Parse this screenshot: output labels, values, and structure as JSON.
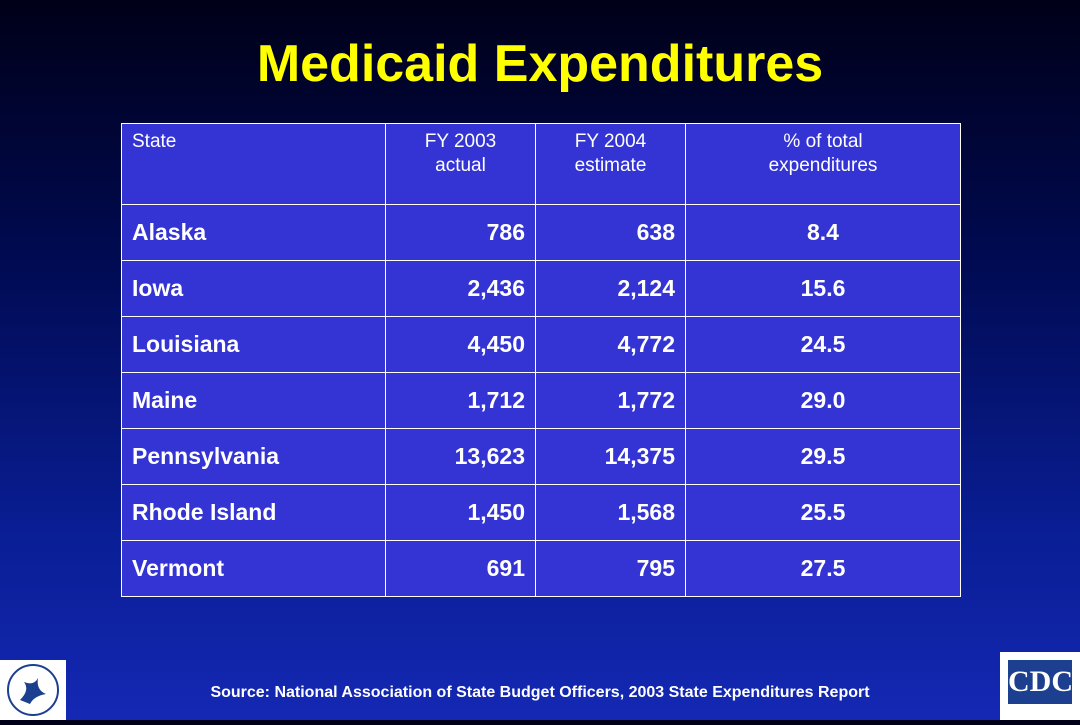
{
  "header": {
    "title": "Medicaid Expenditures"
  },
  "table": {
    "columns": [
      [
        "State"
      ],
      [
        "FY 2003",
        "actual"
      ],
      [
        "FY 2004",
        "estimate"
      ],
      [
        "% of total",
        "expenditures"
      ]
    ],
    "rows": [
      [
        "Alaska",
        "786",
        "638",
        "8.4"
      ],
      [
        "Iowa",
        "2,436",
        "2,124",
        "15.6"
      ],
      [
        "Louisiana",
        "4,450",
        "4,772",
        "24.5"
      ],
      [
        "Maine",
        "1,712",
        "1,772",
        "29.0"
      ],
      [
        "Pennsylvania",
        "13,623",
        "14,375",
        "29.5"
      ],
      [
        "Rhode Island",
        "1,450",
        "1,568",
        "25.5"
      ],
      [
        "Vermont",
        "691",
        "795",
        "27.5"
      ]
    ]
  },
  "footer": {
    "source": "Source: National Association of State Budget Officers, 2003 State Expenditures Report",
    "logo": "CDC"
  }
}
